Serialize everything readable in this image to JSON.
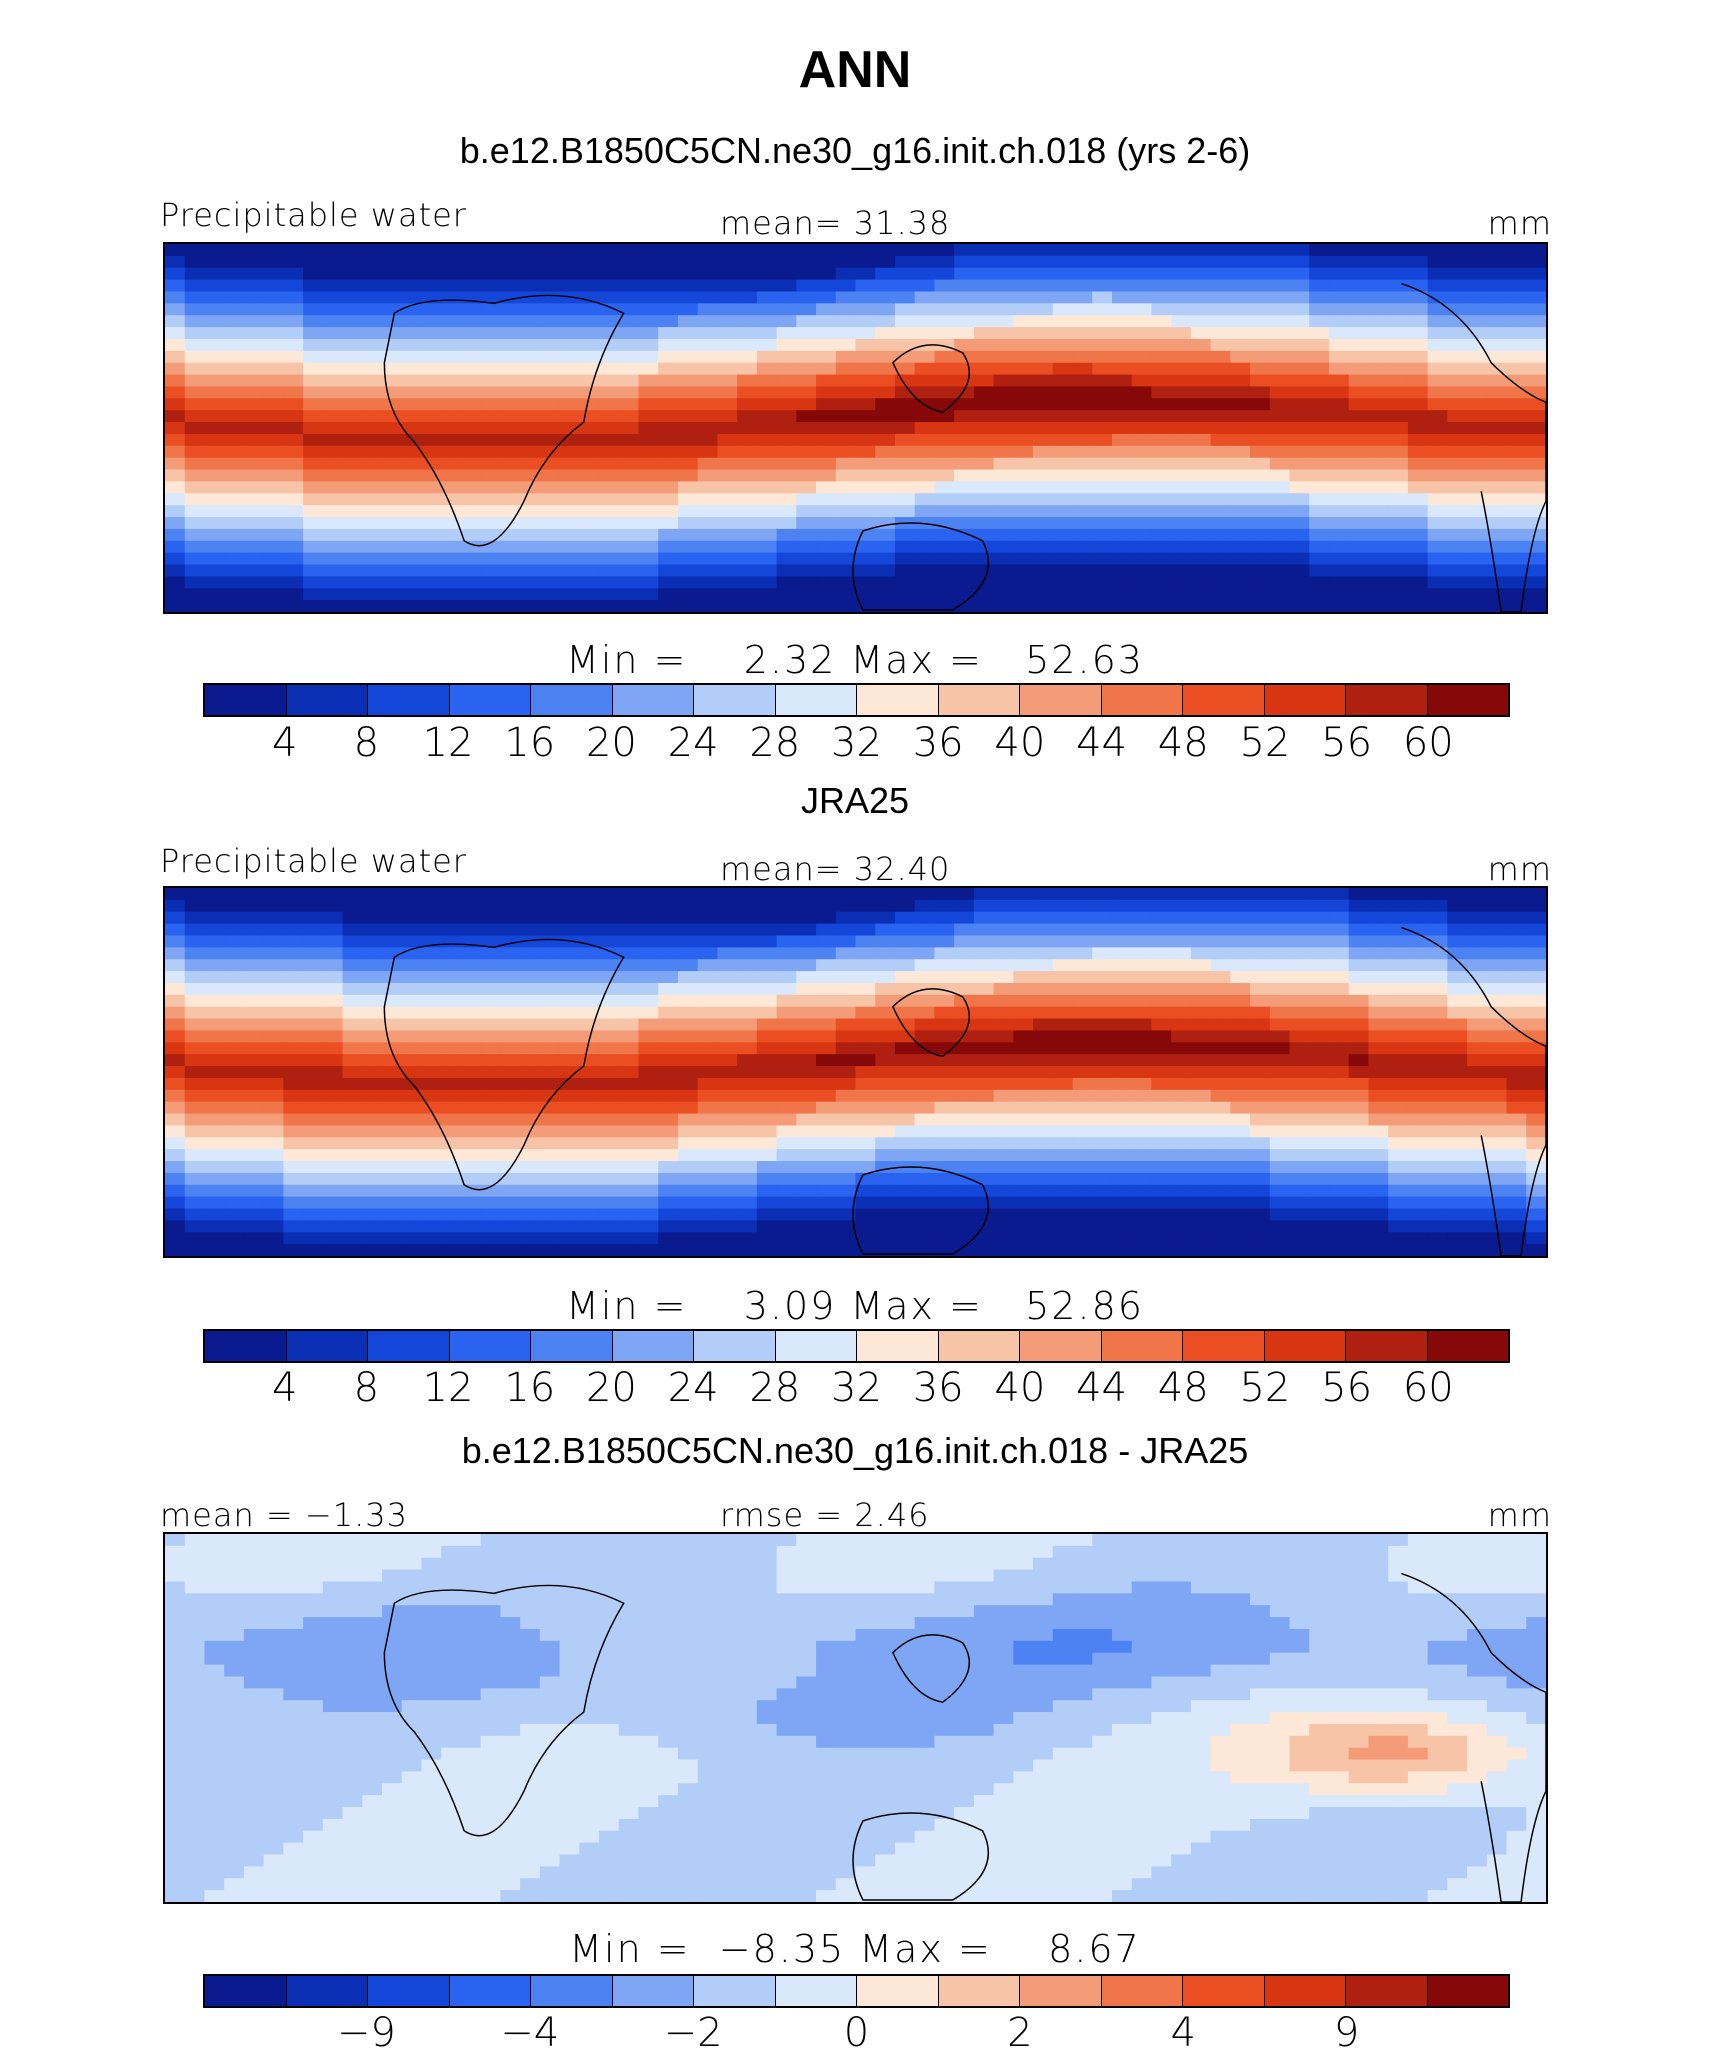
{
  "page_title": "ANN",
  "colorbar_colors": [
    "#0a1a8f",
    "#0b2fb4",
    "#1446d9",
    "#2a63f0",
    "#4c82f2",
    "#7ea6f4",
    "#b2cdf8",
    "#dae8fb",
    "#fde8d8",
    "#f8c4a8",
    "#f49c78",
    "#f07548",
    "#ea4e22",
    "#d83612",
    "#b02010",
    "#860808"
  ],
  "chart_data": [
    {
      "type": "heatmap",
      "title": "b.e12.B1850C5CN.ne30_g16.init.ch.018 (yrs 2-6)",
      "left_label": "Precipitable water",
      "center_label": "mean=   31.38",
      "right_label": "mm",
      "minmax": "Min =    2.32 Max =   52.63",
      "mean": 31.38,
      "min": 2.32,
      "max": 52.63,
      "colorbar_ticks": [
        "4",
        "8",
        "12",
        "16",
        "20",
        "24",
        "28",
        "32",
        "36",
        "40",
        "44",
        "48",
        "52",
        "56",
        "60"
      ]
    },
    {
      "type": "heatmap",
      "title": "JRA25",
      "left_label": "Precipitable water",
      "center_label": "mean=   32.40",
      "right_label": "mm",
      "minmax": "Min =    3.09 Max =   52.86",
      "mean": 32.4,
      "min": 3.09,
      "max": 52.86,
      "colorbar_ticks": [
        "4",
        "8",
        "12",
        "16",
        "20",
        "24",
        "28",
        "32",
        "36",
        "40",
        "44",
        "48",
        "52",
        "56",
        "60"
      ]
    },
    {
      "type": "heatmap",
      "title": "b.e12.B1850C5CN.ne30_g16.init.ch.018 - JRA25",
      "left_label": "mean =  −1.33",
      "center_label": "rmse =    2.46",
      "right_label": "mm",
      "minmax": "Min =  −8.35 Max =    8.67",
      "mean": -1.33,
      "rmse": 2.46,
      "min": -8.35,
      "max": 8.67,
      "colorbar_ticks": [
        "−9",
        "−4",
        "−2",
        "0",
        "2",
        "4",
        "9"
      ]
    }
  ]
}
